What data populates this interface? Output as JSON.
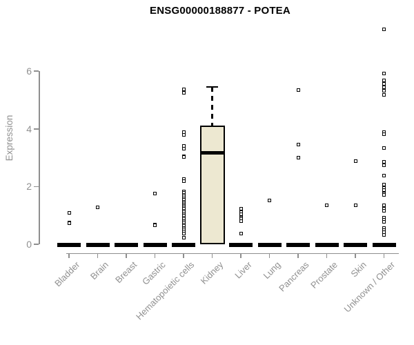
{
  "chart_data": {
    "type": "boxplot",
    "title": "ENSG00000188877 - POTEA",
    "xlabel": "",
    "ylabel": "Expression",
    "ylim": [
      0,
      7.6
    ],
    "yticks": [
      0,
      2,
      4,
      6
    ],
    "grid": false,
    "legend": "none",
    "categories": [
      "Bladder",
      "Brain",
      "Breast",
      "Gastric",
      "Hematopoietic cells",
      "Kidney",
      "Liver",
      "Lung",
      "Pancreas",
      "Prostate",
      "Skin",
      "Unknown / Other"
    ],
    "colors": {
      "box_fill": "#EDE8D1",
      "box_border": "#000000",
      "median": "#000000",
      "point": "#000000",
      "axis": "#8E8E8E",
      "tick_text": "#909090",
      "title_text": "#000000"
    },
    "boxes": [
      {
        "category": "Kidney",
        "q1": 0,
        "median": 3.16,
        "q3": 4.11,
        "whisker_low": 0,
        "whisker_high": 5.45
      }
    ],
    "collapsed_at_zero": [
      "Bladder",
      "Brain",
      "Breast",
      "Gastric",
      "Hematopoietic cells",
      "Liver",
      "Lung",
      "Pancreas",
      "Prostate",
      "Skin",
      "Unknown / Other"
    ],
    "points": {
      "Bladder": [
        1.1,
        0.75,
        0.72
      ],
      "Brain": [
        1.29
      ],
      "Breast": [],
      "Gastric": [
        1.77,
        0.69,
        0.66
      ],
      "Hematopoietic cells": [
        5.38,
        5.24,
        3.88,
        3.79,
        3.42,
        3.31,
        3.05,
        3.02,
        2.25,
        2.2,
        1.84,
        1.78,
        1.72,
        1.66,
        1.6,
        1.54,
        1.48,
        1.43,
        1.38,
        1.33,
        1.28,
        1.23,
        1.17,
        1.11,
        1.05,
        0.99,
        0.93,
        0.87,
        0.81,
        0.75,
        0.69,
        0.63,
        0.57,
        0.51,
        0.45,
        0.38,
        0.22
      ],
      "Kidney": [],
      "Liver": [
        1.24,
        1.12,
        1.03,
        0.91,
        0.88,
        0.81,
        0.38
      ],
      "Lung": [
        1.53
      ],
      "Pancreas": [
        5.35,
        3.45,
        3.01
      ],
      "Prostate": [
        1.36
      ],
      "Skin": [
        2.89,
        1.36
      ],
      "Unknown / Other": [
        7.46,
        5.93,
        5.69,
        5.57,
        5.45,
        5.33,
        5.19,
        3.88,
        3.82,
        3.33,
        2.87,
        2.75,
        2.39,
        2.08,
        1.96,
        1.87,
        1.77,
        1.7,
        1.34,
        1.24,
        1.17,
        0.93,
        0.84,
        0.77,
        0.57,
        0.5,
        0.43,
        0.33
      ]
    }
  }
}
